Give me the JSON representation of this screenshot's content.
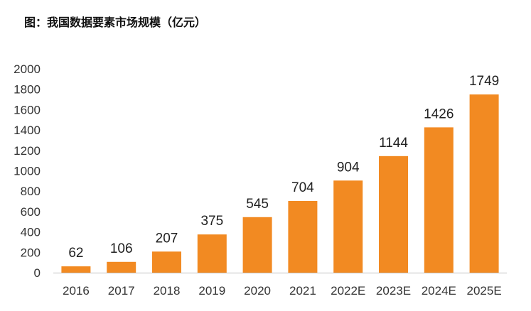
{
  "title": "图：我国数据要素市场规模（亿元）",
  "chart_data": {
    "type": "bar",
    "title": "图：我国数据要素市场规模（亿元）",
    "categories": [
      "2016",
      "2017",
      "2018",
      "2019",
      "2020",
      "2021",
      "2022E",
      "2023E",
      "2024E",
      "2025E"
    ],
    "values": [
      62,
      106,
      207,
      375,
      545,
      704,
      904,
      1144,
      1426,
      1749
    ],
    "ylim": [
      0,
      2000
    ],
    "yticks": [
      0,
      200,
      400,
      600,
      800,
      1000,
      1200,
      1400,
      1600,
      1800,
      2000
    ],
    "xlabel": "",
    "ylabel": "",
    "bar_color": "#F28A22",
    "grid": false,
    "legend": "none"
  }
}
